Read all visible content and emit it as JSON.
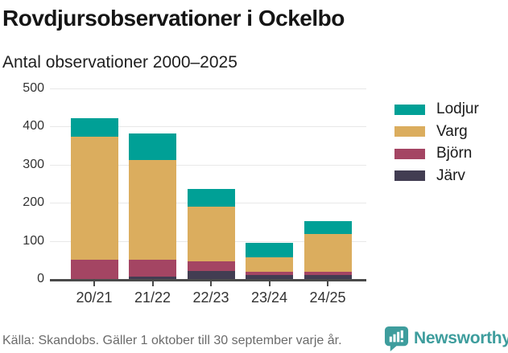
{
  "header": {
    "title": "Rovdjursobservationer i Ockelbo",
    "subtitle": "Antal observationer 2000–2025"
  },
  "chart_data": {
    "type": "bar",
    "stacked": true,
    "categories": [
      "20/21",
      "21/22",
      "22/23",
      "23/24",
      "24/25"
    ],
    "series": [
      {
        "name": "Järv",
        "color": "#423d52",
        "values": [
          2,
          8,
          24,
          12,
          12
        ]
      },
      {
        "name": "Björn",
        "color": "#a44563",
        "values": [
          51,
          45,
          24,
          9,
          10
        ]
      },
      {
        "name": "Varg",
        "color": "#dbad5e",
        "values": [
          323,
          261,
          145,
          39,
          98
        ]
      },
      {
        "name": "Lodjur",
        "color": "#00a096",
        "values": [
          48,
          71,
          45,
          37,
          35
        ]
      }
    ],
    "totals": [
      424,
      385,
      238,
      97,
      155
    ],
    "legend_order": [
      "Lodjur",
      "Varg",
      "Björn",
      "Järv"
    ],
    "title": "Rovdjursobservationer i Ockelbo",
    "xlabel": "",
    "ylabel": "",
    "ylim": [
      0,
      500
    ],
    "yticks": [
      0,
      100,
      200,
      300,
      400,
      500
    ],
    "grid": "horizontal",
    "legend_position": "right",
    "axis_color": "#4a4a4a",
    "gridline_color": "#e8e8e8"
  },
  "footer": {
    "source": "Källa: Skandobs. Gäller 1 oktober till 30 september varje år.",
    "brand": "Newsworthy",
    "brand_color": "#3e9d9d"
  }
}
